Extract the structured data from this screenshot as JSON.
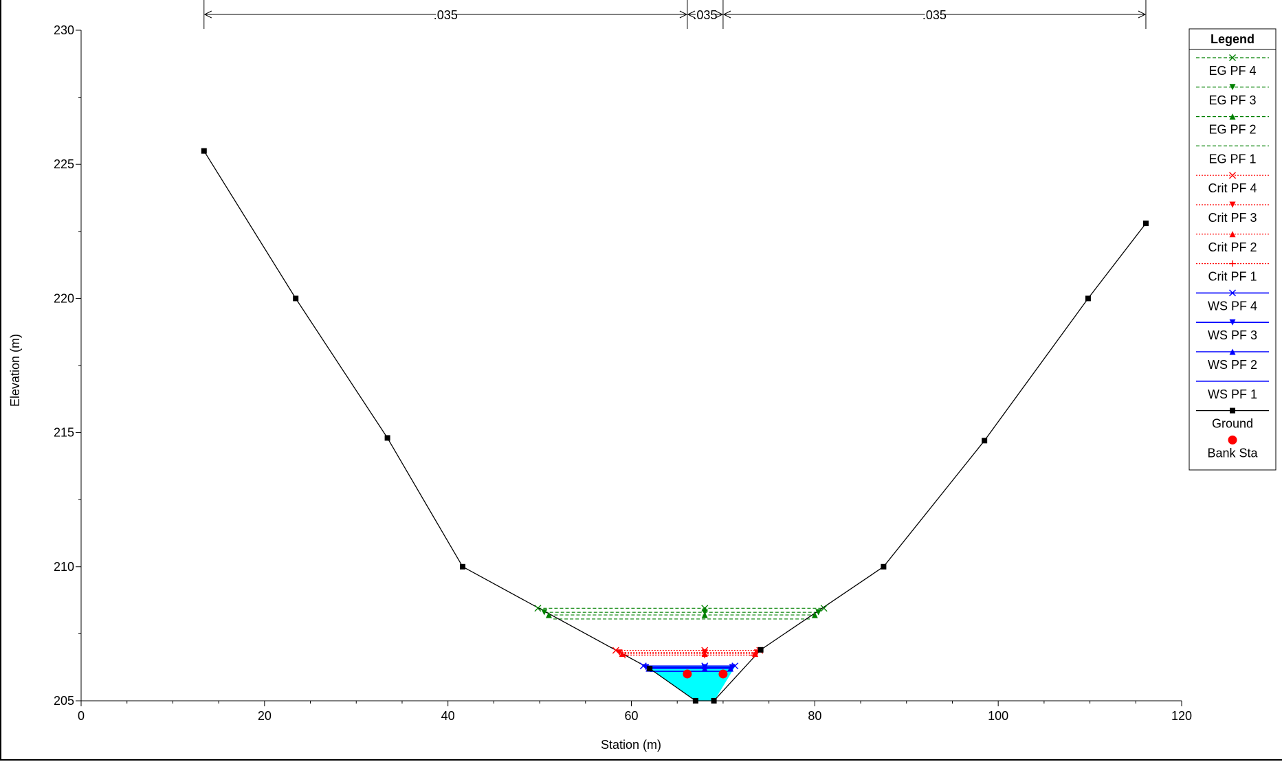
{
  "chart_data": {
    "type": "line",
    "xlabel": "Station (m)",
    "ylabel": "Elevation (m)",
    "xlim": [
      0,
      120
    ],
    "ylim": [
      205,
      230
    ],
    "x_ticks": [
      0,
      20,
      40,
      60,
      80,
      100,
      120
    ],
    "y_ticks": [
      205,
      210,
      215,
      220,
      225,
      230
    ],
    "x_tick_labels": [
      "0",
      "20",
      "40",
      "60",
      "80",
      "100",
      "120"
    ],
    "y_tick_labels": [
      "205",
      "210",
      "215",
      "220",
      "225",
      "230"
    ],
    "grid": false,
    "legend_position": "top-right",
    "legend_title": "Legend",
    "colors": {
      "ground": "#000000",
      "ws": "#0000ff",
      "crit": "#ff0000",
      "eg": "#008000",
      "water_fill": "#00ffff",
      "bank": "#ff0000"
    },
    "manning": [
      {
        "label": ".035",
        "from": 13.4,
        "to": 66.1
      },
      {
        "label": ".035",
        "from": 66.1,
        "to": 70.0
      },
      {
        "label": ".035",
        "from": 70.0,
        "to": 116.1
      }
    ],
    "ground": {
      "name": "Ground",
      "x": [
        13.4,
        23.4,
        33.4,
        41.6,
        62.0,
        67.0,
        69.0,
        74.1,
        87.5,
        98.5,
        109.8,
        116.1
      ],
      "y": [
        225.5,
        220.0,
        214.8,
        210.0,
        206.2,
        205.0,
        205.0,
        206.9,
        210.0,
        214.7,
        220.0,
        222.8
      ]
    },
    "bank_stations": {
      "name": "Bank Sta",
      "x": [
        66.1,
        70.0
      ],
      "y": [
        206.0,
        206.0
      ]
    },
    "series": [
      {
        "name": "EG PF 4",
        "group": "eg",
        "marker": "x",
        "y": 208.45,
        "x_left": 49.8,
        "x_right": 81.0,
        "x_mid": 68.0
      },
      {
        "name": "EG PF 3",
        "group": "eg",
        "marker": "tri-down",
        "y": 208.3,
        "x_left": 50.5,
        "x_right": 80.4,
        "x_mid": 68.0
      },
      {
        "name": "EG PF 2",
        "group": "eg",
        "marker": "tri-up",
        "y": 208.2,
        "x_left": 51.0,
        "x_right": 80.0,
        "x_mid": 68.0
      },
      {
        "name": "EG PF 1",
        "group": "eg",
        "marker": "none",
        "y": 208.05,
        "x_left": 51.5,
        "x_right": 79.5,
        "x_mid": 68.0
      },
      {
        "name": "Crit PF 4",
        "group": "crit",
        "marker": "x",
        "y": 206.88,
        "x_left": 58.3,
        "x_right": 74.0,
        "x_mid": 68.0
      },
      {
        "name": "Crit PF 3",
        "group": "crit",
        "marker": "tri-down",
        "y": 206.8,
        "x_left": 58.7,
        "x_right": 73.7,
        "x_mid": 68.0
      },
      {
        "name": "Crit PF 2",
        "group": "crit",
        "marker": "tri-up",
        "y": 206.75,
        "x_left": 59.0,
        "x_right": 73.5,
        "x_mid": 68.0
      },
      {
        "name": "Crit PF 1",
        "group": "crit",
        "marker": "plus",
        "y": 206.7,
        "x_left": 59.3,
        "x_right": 73.3,
        "x_mid": 68.0
      },
      {
        "name": "WS PF 4",
        "group": "ws",
        "marker": "x",
        "y": 206.3,
        "x_left": 61.3,
        "x_right": 71.3,
        "x_mid": 68.0
      },
      {
        "name": "WS PF 3",
        "group": "ws",
        "marker": "tri-down",
        "y": 206.25,
        "x_left": 61.6,
        "x_right": 71.0,
        "x_mid": 68.0
      },
      {
        "name": "WS PF 2",
        "group": "ws",
        "marker": "tri-up",
        "y": 206.2,
        "x_left": 61.9,
        "x_right": 70.8,
        "x_mid": 68.0
      },
      {
        "name": "WS PF 1",
        "group": "ws",
        "marker": "none",
        "y": 206.1,
        "x_left": 62.0,
        "x_right": 70.5,
        "x_mid": 68.0
      }
    ],
    "legend_entries": [
      "EG PF 4",
      "EG PF 3",
      "EG PF 2",
      "EG PF 1",
      "Crit PF 4",
      "Crit PF 3",
      "Crit PF 2",
      "Crit PF 1",
      "WS PF 4",
      "WS PF 3",
      "WS PF 2",
      "WS PF 1",
      "Ground",
      "Bank Sta"
    ]
  }
}
